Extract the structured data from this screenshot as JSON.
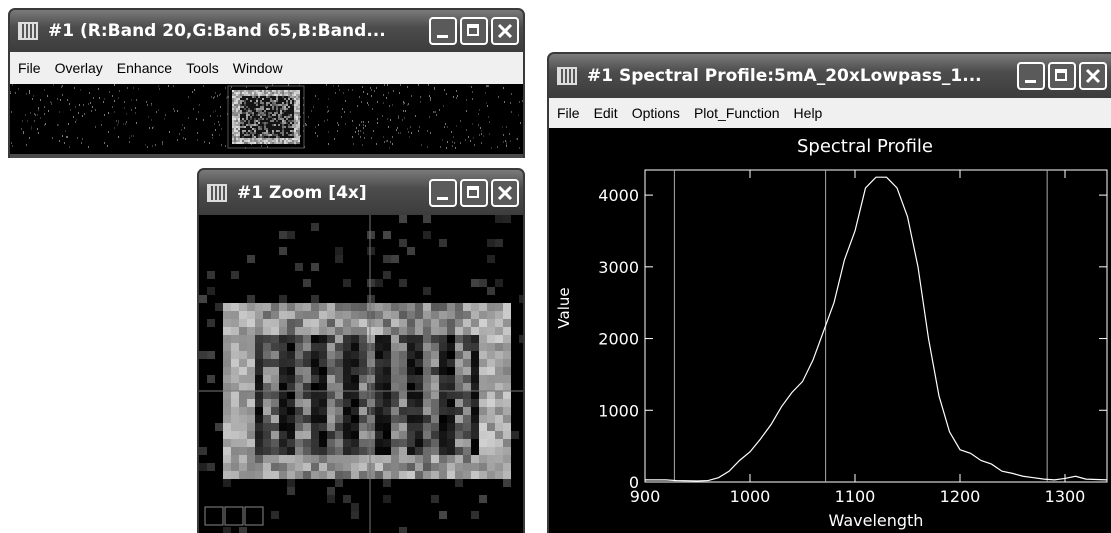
{
  "windows": [
    {
      "title": "#1 (R:Band 20,G:Band 65,B:Band...",
      "menu": [
        "File",
        "Overlay",
        "Enhance",
        "Tools",
        "Window"
      ]
    },
    {
      "title": "#1 Zoom [4x]"
    },
    {
      "title": "#1 Spectral Profile:5mA_20xLowpass_1...",
      "menu": [
        "File",
        "Edit",
        "Options",
        "Plot_Function",
        "Help"
      ],
      "chart_data": {
        "type": "line",
        "title": "Spectral Profile",
        "x_label": "Wavelength",
        "y_label": "Value",
        "x": [
          900,
          920,
          930,
          950,
          960,
          970,
          980,
          990,
          1000,
          1010,
          1020,
          1030,
          1040,
          1050,
          1060,
          1070,
          1080,
          1090,
          1100,
          1105,
          1110,
          1120,
          1130,
          1140,
          1150,
          1160,
          1170,
          1180,
          1190,
          1200,
          1210,
          1220,
          1230,
          1240,
          1250,
          1260,
          1270,
          1280,
          1290,
          1300,
          1310,
          1320,
          1340
        ],
        "values": [
          30,
          30,
          20,
          15,
          20,
          60,
          150,
          300,
          420,
          600,
          800,
          1050,
          1250,
          1400,
          1700,
          2100,
          2500,
          3100,
          3500,
          3800,
          4100,
          4250,
          4250,
          4100,
          3700,
          3000,
          2000,
          1200,
          700,
          450,
          400,
          300,
          250,
          150,
          120,
          80,
          60,
          40,
          30,
          50,
          80,
          40,
          30
        ],
        "color": "#ffffff",
        "xlim": [
          900,
          1340
        ],
        "ylim": [
          0,
          4350
        ],
        "xticks": [
          900,
          1000,
          1100,
          1200,
          1300
        ],
        "yticks": [
          0,
          1000,
          2000,
          3000,
          4000
        ],
        "markers": [
          928,
          1072,
          1283
        ]
      }
    }
  ]
}
